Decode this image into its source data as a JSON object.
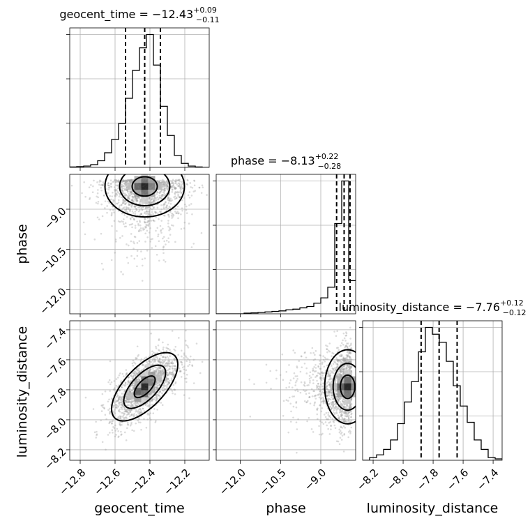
{
  "chart_data": {
    "type": "corner",
    "parameters": [
      "geocent_time",
      "phase",
      "luminosity_distance"
    ],
    "axis_labels": {
      "geocent_time": "geocent_time",
      "phase": "phase",
      "luminosity_distance": "luminosity_distance"
    },
    "ranges": {
      "geocent_time": [
        -12.86,
        -12.06
      ],
      "phase": [
        -12.9,
        -7.7
      ],
      "luminosity_distance": [
        -8.27,
        -7.34
      ]
    },
    "ticks": {
      "geocent_time": [
        -12.8,
        -12.6,
        -12.4,
        -12.2
      ],
      "phase": [
        -12.0,
        -10.5,
        -9.0
      ],
      "luminosity_distance": [
        -8.2,
        -8.0,
        -7.8,
        -7.6,
        -7.4
      ]
    },
    "tick_labels": {
      "geocent_time": [
        "−12.8",
        "−12.6",
        "−12.4",
        "−12.2"
      ],
      "phase": [
        "−12.0",
        "−10.5",
        "−9.0"
      ],
      "luminosity_distance": [
        "−8.2",
        "−8.0",
        "−7.8",
        "−7.6",
        "−7.4"
      ]
    },
    "grid": true,
    "titles": [
      {
        "param": "geocent_time",
        "prefix": "geocent_time = ",
        "median": "−12.43",
        "plus": "+0.09",
        "minus": "−0.11"
      },
      {
        "param": "phase",
        "prefix": "phase = ",
        "median": "−8.13",
        "plus": "+0.22",
        "minus": "−0.28"
      },
      {
        "param": "luminosity_distance",
        "prefix": "luminosity_distance = ",
        "median": "−7.76",
        "plus": "+0.12",
        "minus": "−0.12"
      }
    ],
    "marginals": {
      "geocent_time": {
        "edges": [
          -12.86,
          -12.82,
          -12.78,
          -12.74,
          -12.7,
          -12.66,
          -12.62,
          -12.58,
          -12.54,
          -12.5,
          -12.46,
          -12.42,
          -12.38,
          -12.34,
          -12.3,
          -12.26,
          -12.22,
          -12.18,
          -12.14,
          -12.1,
          -12.06
        ],
        "counts": [
          0.3,
          0.6,
          1,
          2,
          5,
          11,
          21,
          33,
          52,
          73,
          90,
          100,
          77,
          46,
          24,
          9,
          3,
          1,
          0.3,
          0
        ],
        "quantiles": [
          -12.54,
          -12.43,
          -12.34
        ]
      },
      "phase": {
        "edges": [
          -12.9,
          -12.64,
          -12.38,
          -12.12,
          -11.86,
          -11.6,
          -11.34,
          -11.08,
          -10.82,
          -10.56,
          -10.3,
          -10.04,
          -9.78,
          -9.52,
          -9.26,
          -9.0,
          -8.74,
          -8.48,
          -8.22,
          -7.96,
          -7.7
        ],
        "counts": [
          0,
          0,
          0,
          0,
          0.5,
          0.7,
          1,
          1.4,
          1.8,
          2.2,
          3,
          3.5,
          4.5,
          5.5,
          8,
          12,
          20,
          68,
          100,
          25
        ],
        "quantiles": [
          -8.41,
          -8.13,
          -7.91
        ]
      },
      "luminosity_distance": {
        "edges": [
          -8.27,
          -8.2235,
          -8.177,
          -8.1305,
          -8.084,
          -8.0375,
          -7.991,
          -7.9445,
          -7.898,
          -7.8515,
          -7.805,
          -7.7585,
          -7.712,
          -7.6655,
          -7.619,
          -7.5725,
          -7.526,
          -7.4795,
          -7.433,
          -7.3865,
          -7.34
        ],
        "counts": [
          0,
          2,
          4,
          8,
          15,
          27,
          43,
          58,
          80,
          98,
          93,
          87,
          73,
          55,
          40,
          28,
          15,
          8,
          2,
          1
        ],
        "quantiles": [
          -7.88,
          -7.76,
          -7.64
        ]
      }
    },
    "joint": {
      "phase_vs_geocent_time": {
        "center": [
          -12.43,
          -8.15
        ],
        "spread": [
          0.12,
          0.6
        ],
        "correlation": 0.0
      },
      "luminosity_distance_vs_geocent_time": {
        "center": [
          -12.43,
          -7.78
        ],
        "spread": [
          0.1,
          0.12
        ],
        "correlation": 0.65
      },
      "luminosity_distance_vs_phase": {
        "center": [
          -8.0,
          -7.78
        ],
        "spread": [
          0.45,
          0.13
        ],
        "correlation": 0.0
      }
    }
  }
}
